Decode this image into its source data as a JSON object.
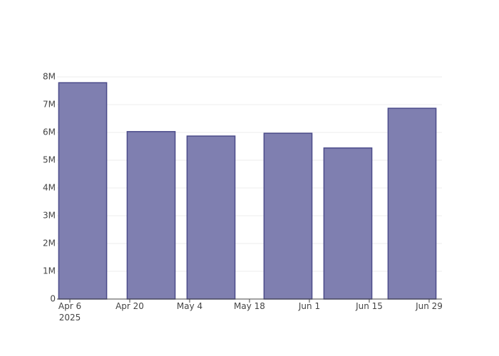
{
  "chart_data": {
    "type": "bar",
    "x": [
      "2025-04-09",
      "2025-04-25",
      "2025-05-09",
      "2025-05-27",
      "2025-06-10",
      "2025-06-25"
    ],
    "values": [
      7790000,
      6030000,
      5870000,
      5970000,
      5440000,
      6870000
    ],
    "color": "#7f7fb0",
    "line_color": "#4b4b8a",
    "xlim": [
      "2025-04-03",
      "2025-07-02"
    ],
    "xticks": [
      {
        "value": "2025-04-06",
        "label": "Apr 6\n2025"
      },
      {
        "value": "2025-04-20",
        "label": "Apr 20"
      },
      {
        "value": "2025-05-04",
        "label": "May 4"
      },
      {
        "value": "2025-05-18",
        "label": "May 18"
      },
      {
        "value": "2025-06-01",
        "label": "Jun 1"
      },
      {
        "value": "2025-06-15",
        "label": "Jun 15"
      },
      {
        "value": "2025-06-29",
        "label": "Jun 29"
      }
    ],
    "ylim": [
      0,
      8000000
    ],
    "yticks": [
      0,
      {
        "value": 1000000,
        "label": "1M"
      },
      {
        "value": 2000000,
        "label": "2M"
      },
      {
        "value": 3000000,
        "label": "3M"
      },
      {
        "value": 4000000,
        "label": "4M"
      },
      {
        "value": 5000000,
        "label": "5M"
      },
      {
        "value": 6000000,
        "label": "6M"
      },
      {
        "value": 7000000,
        "label": "7M"
      },
      {
        "value": 8000000,
        "label": "8M"
      }
    ],
    "grid": true
  }
}
